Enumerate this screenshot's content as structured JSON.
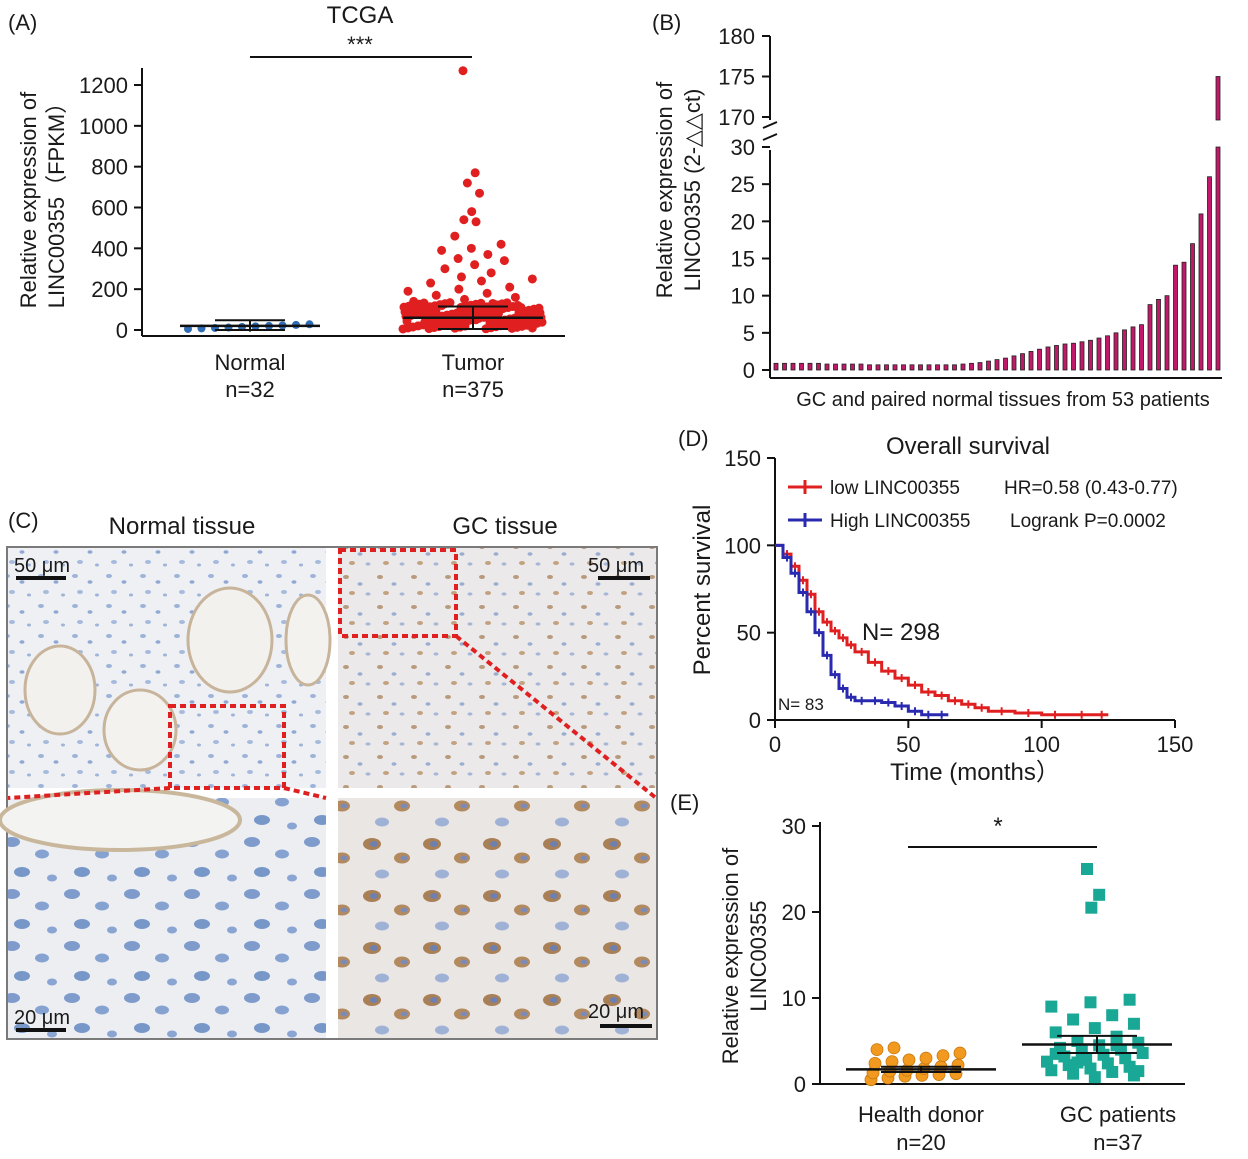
{
  "panels": {
    "A": {
      "label": "(A)",
      "title": "TCGA",
      "significance": "***",
      "ylabel_line1": "Relative expression of",
      "ylabel_line2": "LINC00355（FPKM）",
      "groups": [
        {
          "name": "Normal",
          "n": "n=32"
        },
        {
          "name": "Tumor",
          "n": "n=375"
        }
      ],
      "colors": {
        "normal": "#2f6db5",
        "tumor": "#e02020"
      }
    },
    "B": {
      "label": "(B)",
      "ylabel_line1": "Relative expression of",
      "ylabel_line2": "LINC00355 (2-△△ct)",
      "xlabel": "GC and paired normal tissues from 53 patients",
      "bar_color": "#c2186a"
    },
    "C": {
      "label": "(C)",
      "col1": "Normal tissue",
      "col2": "GC tissue",
      "scale_top_left": "50 μm",
      "scale_top_right": "50 μm",
      "scale_bottom_left": "20 μm",
      "scale_bottom_right": "20 μm"
    },
    "D": {
      "label": "(D)",
      "title": "Overall survival",
      "legend_low": "low LINC00355",
      "legend_high": "High LINC00355",
      "hr_text": "HR=0.58 (0.43-0.77)",
      "logrank_text": "Logrank P=0.0002",
      "n_low": "N= 298",
      "n_high": "N= 83",
      "xlabel": "Time (months）",
      "ylabel": "Percent survival",
      "colors": {
        "low": "#e02020",
        "high": "#2a2ab0"
      }
    },
    "E": {
      "label": "(E)",
      "significance": "*",
      "ylabel_line1": "Relative expression of",
      "ylabel_line2": "LINC00355",
      "groups": [
        {
          "name": "Health donor",
          "n": "n=20"
        },
        {
          "name": "GC patients",
          "n": "n=37"
        }
      ],
      "colors": {
        "donor": "#f29a1f",
        "gc": "#1aa896"
      }
    }
  },
  "chart_data": [
    {
      "panel": "A",
      "type": "scatter",
      "title": "TCGA",
      "categories": [
        "Normal",
        "Tumor"
      ],
      "ylim": [
        0,
        1300
      ],
      "yticks": [
        0,
        200,
        400,
        600,
        800,
        1000,
        1200
      ],
      "normal_points": [
        5,
        8,
        10,
        12,
        15,
        18,
        20,
        22,
        25,
        28
      ],
      "tumor_points": [
        1270,
        770,
        720,
        670,
        580,
        540,
        530,
        460,
        420,
        400,
        390,
        370,
        350,
        340,
        320,
        300,
        280,
        260,
        250,
        240,
        230,
        210,
        200,
        190,
        180,
        170,
        160,
        150,
        140,
        130,
        120,
        110,
        100,
        90,
        80,
        70,
        60,
        50,
        40,
        30,
        20,
        10
      ],
      "normal_mean": 20,
      "normal_err": 28,
      "tumor_mean": 60,
      "tumor_err": 55
    },
    {
      "panel": "B",
      "type": "bar",
      "axis_break": [
        30,
        167
      ],
      "yticks_lower": [
        0,
        5,
        10,
        15,
        20,
        25,
        30
      ],
      "yticks_upper": [
        170,
        175,
        180
      ],
      "values": [
        0.9,
        0.9,
        0.9,
        0.9,
        0.9,
        0.9,
        0.8,
        0.8,
        0.8,
        0.8,
        0.8,
        0.7,
        0.7,
        0.7,
        0.7,
        0.7,
        0.7,
        0.7,
        0.7,
        0.7,
        0.7,
        0.7,
        0.8,
        0.9,
        1.0,
        1.2,
        1.4,
        1.6,
        1.9,
        2.2,
        2.5,
        2.8,
        3.1,
        3.3,
        3.5,
        3.6,
        3.8,
        4.0,
        4.3,
        4.6,
        5.0,
        5.4,
        5.8,
        6.1,
        8.8,
        9.5,
        10.0,
        14.1,
        14.5,
        17.0,
        21.0,
        26.0,
        175.0
      ]
    },
    {
      "panel": "D",
      "type": "line",
      "xlim": [
        0,
        150
      ],
      "ylim": [
        0,
        150
      ],
      "xticks": [
        0,
        50,
        100,
        150
      ],
      "yticks": [
        0,
        50,
        100,
        150
      ],
      "series": [
        {
          "name": "low LINC00355",
          "x": [
            0,
            3,
            6,
            9,
            12,
            15,
            18,
            21,
            24,
            27,
            30,
            35,
            40,
            45,
            50,
            55,
            60,
            65,
            70,
            75,
            80,
            90,
            100,
            110,
            120,
            125
          ],
          "y": [
            100,
            95,
            88,
            80,
            72,
            62,
            56,
            51,
            47,
            43,
            39,
            33,
            28,
            24,
            20,
            16,
            14,
            11,
            9,
            7,
            5,
            4,
            3,
            3,
            3,
            3
          ]
        },
        {
          "name": "High LINC00355",
          "x": [
            0,
            3,
            6,
            9,
            12,
            15,
            18,
            21,
            24,
            27,
            30,
            35,
            40,
            45,
            50,
            55,
            60,
            65
          ],
          "y": [
            100,
            93,
            84,
            73,
            62,
            50,
            37,
            26,
            18,
            13,
            11,
            11,
            10,
            8,
            5,
            3,
            3,
            3
          ]
        }
      ]
    },
    {
      "panel": "E",
      "type": "scatter",
      "categories": [
        "Health donor",
        "GC patients"
      ],
      "ylim": [
        0,
        30
      ],
      "yticks": [
        0,
        10,
        20,
        30
      ],
      "donor_points": [
        0.5,
        0.7,
        0.9,
        1.0,
        1.1,
        1.2,
        1.3,
        1.5,
        1.6,
        1.8,
        2.0,
        2.2,
        2.4,
        2.6,
        2.8,
        3.0,
        3.3,
        3.6,
        4.0,
        4.2
      ],
      "gc_points": [
        25,
        22,
        20.5,
        9.8,
        9.5,
        9,
        8,
        7.5,
        7,
        6.5,
        6,
        5.5,
        5,
        4.8,
        4.5,
        4.2,
        4,
        3.8,
        3.6,
        3.4,
        3.2,
        3,
        2.8,
        2.6,
        2.4,
        2.2,
        2,
        1.8,
        1.6,
        1.4,
        1.2,
        1.0,
        0.8,
        3.5,
        4.5,
        2.5,
        1.5
      ],
      "donor_mean": 1.7,
      "donor_err": 0.3,
      "gc_mean": 4.6,
      "gc_err": 1.0
    }
  ]
}
